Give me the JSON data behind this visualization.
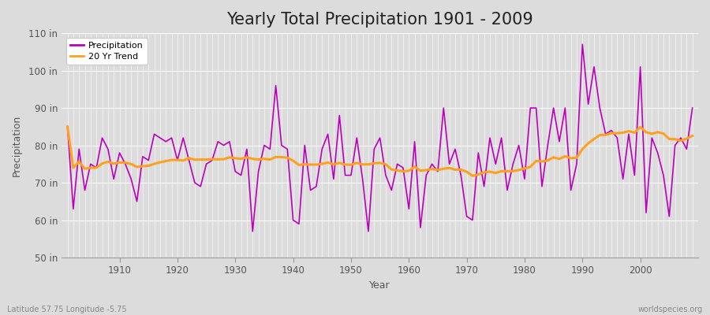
{
  "title": "Yearly Total Precipitation 1901 - 2009",
  "xlabel": "Year",
  "ylabel": "Precipitation",
  "ylim": [
    50,
    110
  ],
  "xlim": [
    1900,
    2010
  ],
  "yticks": [
    50,
    60,
    70,
    80,
    90,
    100,
    110
  ],
  "ytick_labels": [
    "50 in",
    "60 in",
    "70 in",
    "80 in",
    "90 in",
    "100 in",
    "110 in"
  ],
  "xticks": [
    1910,
    1920,
    1930,
    1940,
    1950,
    1960,
    1970,
    1980,
    1990,
    2000
  ],
  "precip_color": "#BB00BB",
  "trend_color": "#FFA020",
  "bg_color": "#DCDCDC",
  "plot_bg_color": "#DCDCDC",
  "grid_color_h": "#FFFFFF",
  "grid_color_v": "#FFFFFF",
  "title_fontsize": 15,
  "label_fontsize": 9,
  "tick_fontsize": 8.5,
  "footnote_left": "Latitude 57.75 Longitude -5.75",
  "footnote_right": "worldspecies.org",
  "legend_labels": [
    "Precipitation",
    "20 Yr Trend"
  ],
  "years": [
    1901,
    1902,
    1903,
    1904,
    1905,
    1906,
    1907,
    1908,
    1909,
    1910,
    1911,
    1912,
    1913,
    1914,
    1915,
    1916,
    1917,
    1918,
    1919,
    1920,
    1921,
    1922,
    1923,
    1924,
    1925,
    1926,
    1927,
    1928,
    1929,
    1930,
    1931,
    1932,
    1933,
    1934,
    1935,
    1936,
    1937,
    1938,
    1939,
    1940,
    1941,
    1942,
    1943,
    1944,
    1945,
    1946,
    1947,
    1948,
    1949,
    1950,
    1951,
    1952,
    1953,
    1954,
    1955,
    1956,
    1957,
    1958,
    1959,
    1960,
    1961,
    1962,
    1963,
    1964,
    1965,
    1966,
    1967,
    1968,
    1969,
    1970,
    1971,
    1972,
    1973,
    1974,
    1975,
    1976,
    1977,
    1978,
    1979,
    1980,
    1981,
    1982,
    1983,
    1984,
    1985,
    1986,
    1987,
    1988,
    1989,
    1990,
    1991,
    1992,
    1993,
    1994,
    1995,
    1996,
    1997,
    1998,
    1999,
    2000,
    2001,
    2002,
    2003,
    2004,
    2005,
    2006,
    2007,
    2008,
    2009
  ],
  "precip": [
    85,
    63,
    79,
    68,
    75,
    74,
    82,
    79,
    71,
    78,
    75,
    71,
    65,
    77,
    76,
    83,
    82,
    81,
    82,
    76,
    82,
    76,
    70,
    69,
    75,
    76,
    81,
    80,
    81,
    73,
    72,
    79,
    57,
    73,
    80,
    79,
    96,
    80,
    79,
    60,
    59,
    80,
    68,
    69,
    79,
    83,
    71,
    88,
    72,
    72,
    82,
    71,
    57,
    79,
    82,
    72,
    68,
    75,
    74,
    63,
    81,
    58,
    72,
    75,
    73,
    90,
    75,
    79,
    72,
    61,
    60,
    78,
    69,
    82,
    75,
    82,
    68,
    75,
    80,
    71,
    90,
    90,
    69,
    80,
    90,
    81,
    90,
    68,
    75,
    107,
    91,
    101,
    90,
    83,
    84,
    82,
    71,
    83,
    72,
    101,
    62,
    82,
    78,
    72,
    61,
    80,
    82,
    79,
    90
  ]
}
